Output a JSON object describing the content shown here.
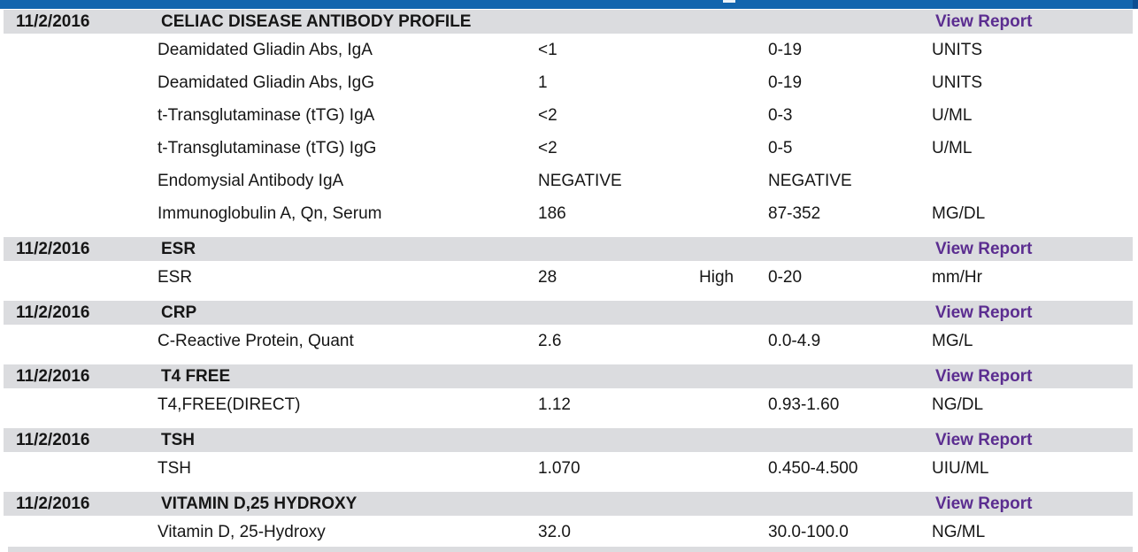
{
  "colors": {
    "divider_blue": "#1365ae",
    "divider_blue_dark": "#0c4d92",
    "section_header_gray": "#dbdcdf",
    "link_purple": "#5b2d90",
    "text": "#161616"
  },
  "sections": [
    {
      "date": "11/2/2016",
      "panel": "CELIAC DISEASE ANTIBODY PROFILE",
      "action": "View Report",
      "tests": [
        {
          "name": "Deamidated Gliadin Abs, IgA",
          "value": "<1",
          "flag": "",
          "range": "0-19",
          "units": "UNITS"
        },
        {
          "name": "Deamidated Gliadin Abs, IgG",
          "value": "1",
          "flag": "",
          "range": "0-19",
          "units": "UNITS"
        },
        {
          "name": "t-Transglutaminase (tTG) IgA",
          "value": "<2",
          "flag": "",
          "range": "0-3",
          "units": "U/ML"
        },
        {
          "name": "t-Transglutaminase (tTG) IgG",
          "value": "<2",
          "flag": "",
          "range": "0-5",
          "units": "U/ML"
        },
        {
          "name": "Endomysial Antibody IgA",
          "value": "NEGATIVE",
          "flag": "",
          "range": "NEGATIVE",
          "units": ""
        },
        {
          "name": "Immunoglobulin A, Qn, Serum",
          "value": "186",
          "flag": "",
          "range": "87-352",
          "units": "MG/DL"
        }
      ]
    },
    {
      "date": "11/2/2016",
      "panel": "ESR",
      "action": "View Report",
      "tests": [
        {
          "name": "ESR",
          "value": "28",
          "flag": "High",
          "range": "0-20",
          "units": "mm/Hr"
        }
      ]
    },
    {
      "date": "11/2/2016",
      "panel": "CRP",
      "action": "View Report",
      "tests": [
        {
          "name": "C-Reactive Protein, Quant",
          "value": "2.6",
          "flag": "",
          "range": "0.0-4.9",
          "units": "MG/L"
        }
      ]
    },
    {
      "date": "11/2/2016",
      "panel": "T4 FREE",
      "action": "View Report",
      "tests": [
        {
          "name": "T4,FREE(DIRECT)",
          "value": "1.12",
          "flag": "",
          "range": "0.93-1.60",
          "units": "NG/DL"
        }
      ]
    },
    {
      "date": "11/2/2016",
      "panel": "TSH",
      "action": "View Report",
      "tests": [
        {
          "name": "TSH",
          "value": "1.070",
          "flag": "",
          "range": "0.450-4.500",
          "units": "UIU/ML"
        }
      ]
    },
    {
      "date": "11/2/2016",
      "panel": "VITAMIN D,25 HYDROXY",
      "action": "View Report",
      "tests": [
        {
          "name": "Vitamin D, 25-Hydroxy",
          "value": "32.0",
          "flag": "",
          "range": "30.0-100.0",
          "units": "NG/ML"
        }
      ]
    }
  ]
}
